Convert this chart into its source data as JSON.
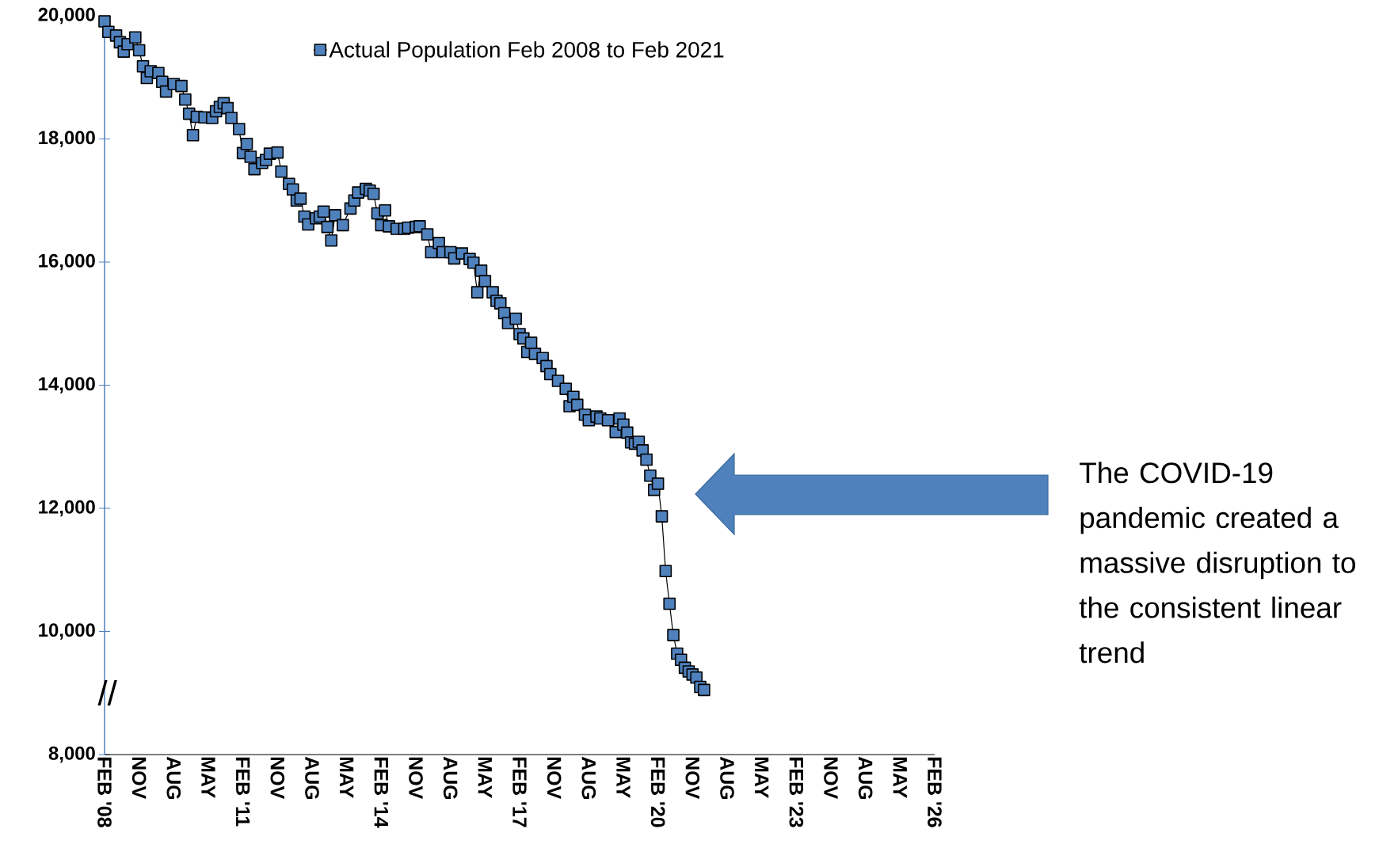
{
  "chart_data": {
    "type": "line",
    "x": [
      "2008-02",
      "2008-03",
      "2008-05",
      "2008-06",
      "2008-07",
      "2008-08",
      "2008-10",
      "2008-11",
      "2008-12",
      "2009-01",
      "2009-02",
      "2009-04",
      "2009-05",
      "2009-06",
      "2009-08",
      "2009-10",
      "2009-11",
      "2009-12",
      "2010-01",
      "2010-02",
      "2010-04",
      "2010-06",
      "2010-07",
      "2010-08",
      "2010-09",
      "2010-10",
      "2010-11",
      "2011-01",
      "2011-02",
      "2011-03",
      "2011-04",
      "2011-05",
      "2011-07",
      "2011-08",
      "2011-09",
      "2011-11",
      "2011-12",
      "2012-02",
      "2012-03",
      "2012-04",
      "2012-05",
      "2012-06",
      "2012-07",
      "2012-09",
      "2012-10",
      "2012-11",
      "2012-12",
      "2013-01",
      "2013-02",
      "2013-04",
      "2013-06",
      "2013-07",
      "2013-08",
      "2013-10",
      "2013-11",
      "2013-12",
      "2014-01",
      "2014-02",
      "2014-03",
      "2014-04",
      "2014-06",
      "2014-08",
      "2014-09",
      "2014-11",
      "2014-12",
      "2015-02",
      "2015-03",
      "2015-05",
      "2015-06",
      "2015-08",
      "2015-09",
      "2015-11",
      "2016-01",
      "2016-02",
      "2016-03",
      "2016-04",
      "2016-05",
      "2016-07",
      "2016-08",
      "2016-09",
      "2016-10",
      "2016-11",
      "2017-01",
      "2017-02",
      "2017-03",
      "2017-04",
      "2017-05",
      "2017-06",
      "2017-08",
      "2017-09",
      "2017-10",
      "2017-12",
      "2018-02",
      "2018-03",
      "2018-04",
      "2018-05",
      "2018-07",
      "2018-08",
      "2018-10",
      "2018-11",
      "2019-01",
      "2019-03",
      "2019-04",
      "2019-05",
      "2019-06",
      "2019-07",
      "2019-08",
      "2019-09",
      "2019-10",
      "2019-11",
      "2019-12",
      "2020-01",
      "2020-02",
      "2020-03",
      "2020-04",
      "2020-05",
      "2020-06",
      "2020-07",
      "2020-08",
      "2020-09",
      "2020-10",
      "2020-11",
      "2020-12",
      "2021-01",
      "2021-02"
    ],
    "series": [
      {
        "name": "Actual Population Feb 2008 to Feb 2021",
        "color": "#4f81bd",
        "values": [
          19910,
          19740,
          19680,
          19570,
          19420,
          19540,
          19650,
          19440,
          19180,
          18990,
          19100,
          19070,
          18930,
          18770,
          18890,
          18860,
          18640,
          18410,
          18060,
          18360,
          18350,
          18340,
          18450,
          18520,
          18580,
          18500,
          18340,
          18160,
          17770,
          17920,
          17710,
          17510,
          17610,
          17660,
          17760,
          17780,
          17470,
          17270,
          17180,
          17000,
          17030,
          16740,
          16610,
          16710,
          16740,
          16820,
          16570,
          16350,
          16760,
          16600,
          16870,
          17000,
          17130,
          17190,
          17160,
          17110,
          16790,
          16600,
          16840,
          16580,
          16540,
          16540,
          16560,
          16570,
          16580,
          16450,
          16160,
          16310,
          16160,
          16160,
          16060,
          16140,
          16050,
          15990,
          15510,
          15860,
          15690,
          15510,
          15370,
          15330,
          15170,
          15010,
          15080,
          14830,
          14760,
          14540,
          14690,
          14510,
          14440,
          14310,
          14180,
          14070,
          13940,
          13660,
          13810,
          13680,
          13520,
          13430,
          13490,
          13460,
          13430,
          13240,
          13460,
          13360,
          13230,
          13070,
          13050,
          13080,
          12940,
          12790,
          12530,
          12300,
          12400,
          11870,
          10980,
          10450,
          9940,
          9640,
          9540,
          9410,
          9350,
          9300,
          9250,
          9100,
          9050
        ]
      }
    ],
    "xlim": [
      "2008-02",
      "2026-02"
    ],
    "xticks": [
      {
        "value": "2008-02",
        "label": "FEB '08"
      },
      {
        "value": "2008-11",
        "label": "NOV"
      },
      {
        "value": "2009-08",
        "label": "AUG"
      },
      {
        "value": "2010-05",
        "label": "MAY"
      },
      {
        "value": "2011-02",
        "label": "FEB '11"
      },
      {
        "value": "2011-11",
        "label": "NOV"
      },
      {
        "value": "2012-08",
        "label": "AUG"
      },
      {
        "value": "2013-05",
        "label": "MAY"
      },
      {
        "value": "2014-02",
        "label": "FEB '14"
      },
      {
        "value": "2014-11",
        "label": "NOV"
      },
      {
        "value": "2015-08",
        "label": "AUG"
      },
      {
        "value": "2016-05",
        "label": "MAY"
      },
      {
        "value": "2017-02",
        "label": "FEB '17"
      },
      {
        "value": "2017-11",
        "label": "NOV"
      },
      {
        "value": "2018-08",
        "label": "AUG"
      },
      {
        "value": "2019-05",
        "label": "MAY"
      },
      {
        "value": "2020-02",
        "label": "FEB '20"
      },
      {
        "value": "2020-11",
        "label": "NOV"
      },
      {
        "value": "2021-08",
        "label": "AUG"
      },
      {
        "value": "2022-05",
        "label": "MAY"
      },
      {
        "value": "2023-02",
        "label": "FEB '23"
      },
      {
        "value": "2023-11",
        "label": "NOV"
      },
      {
        "value": "2024-08",
        "label": "AUG"
      },
      {
        "value": "2025-05",
        "label": "MAY"
      },
      {
        "value": "2026-02",
        "label": "FEB '26"
      }
    ],
    "ylim": [
      8000,
      20000
    ],
    "yticks": [
      {
        "value": 8000,
        "label": "8,000"
      },
      {
        "value": 10000,
        "label": "10,000"
      },
      {
        "value": 12000,
        "label": "12,000"
      },
      {
        "value": 14000,
        "label": "14,000"
      },
      {
        "value": 16000,
        "label": "16,000"
      },
      {
        "value": 18000,
        "label": "18,000"
      },
      {
        "value": 20000,
        "label": "20,000"
      }
    ],
    "marker": "square",
    "line_style": "solid",
    "legend": "top",
    "grid": false,
    "annotations": [
      "The COVID-19 pandemic created a massive disruption to the consistent linear trend",
      "//"
    ]
  }
}
